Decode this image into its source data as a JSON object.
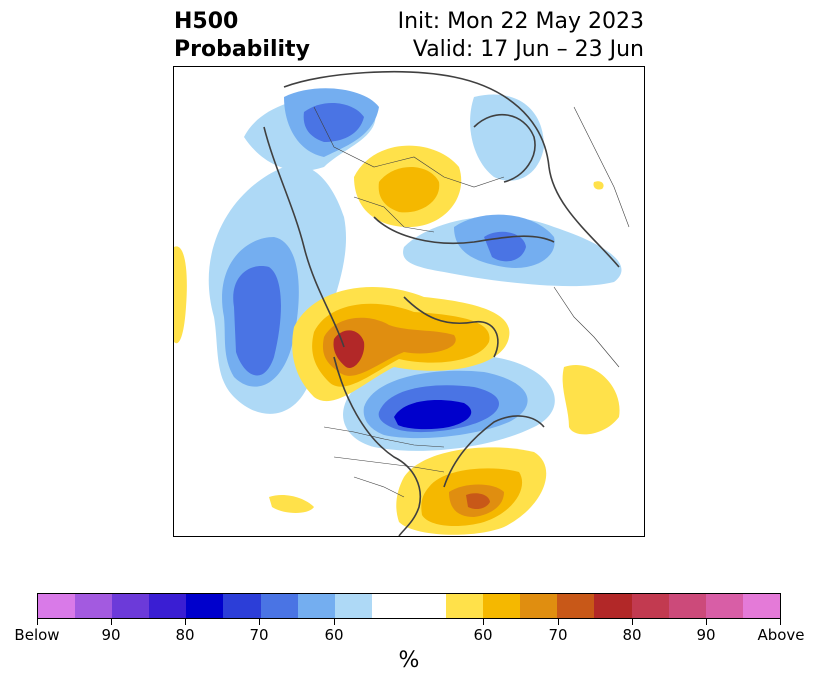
{
  "title": {
    "left_line1": "H500",
    "left_line2": "Probability",
    "right_line1": "Init: Mon 22 May 2023",
    "right_line2": "Valid: 17 Jun – 23 Jun"
  },
  "colorbar": {
    "colors": [
      "#d97ae8",
      "#a35ae0",
      "#6c3ad9",
      "#3a1ed3",
      "#0000cc",
      "#2c3ed8",
      "#4a74e4",
      "#74aef0",
      "#aed9f6",
      "#ffffff",
      "#ffe14a",
      "#f5b800",
      "#e08e10",
      "#c85818",
      "#b22828",
      "#c23a50",
      "#cc4a7a",
      "#d85ea6",
      "#e47ad8"
    ],
    "tick_labels": [
      "Below",
      "90",
      "80",
      "70",
      "60",
      "60",
      "70",
      "80",
      "90",
      "Above"
    ],
    "unit": "%"
  },
  "map": {
    "projection": "north-polar-stereographic",
    "variable": "500 hPa height anomaly probability"
  }
}
